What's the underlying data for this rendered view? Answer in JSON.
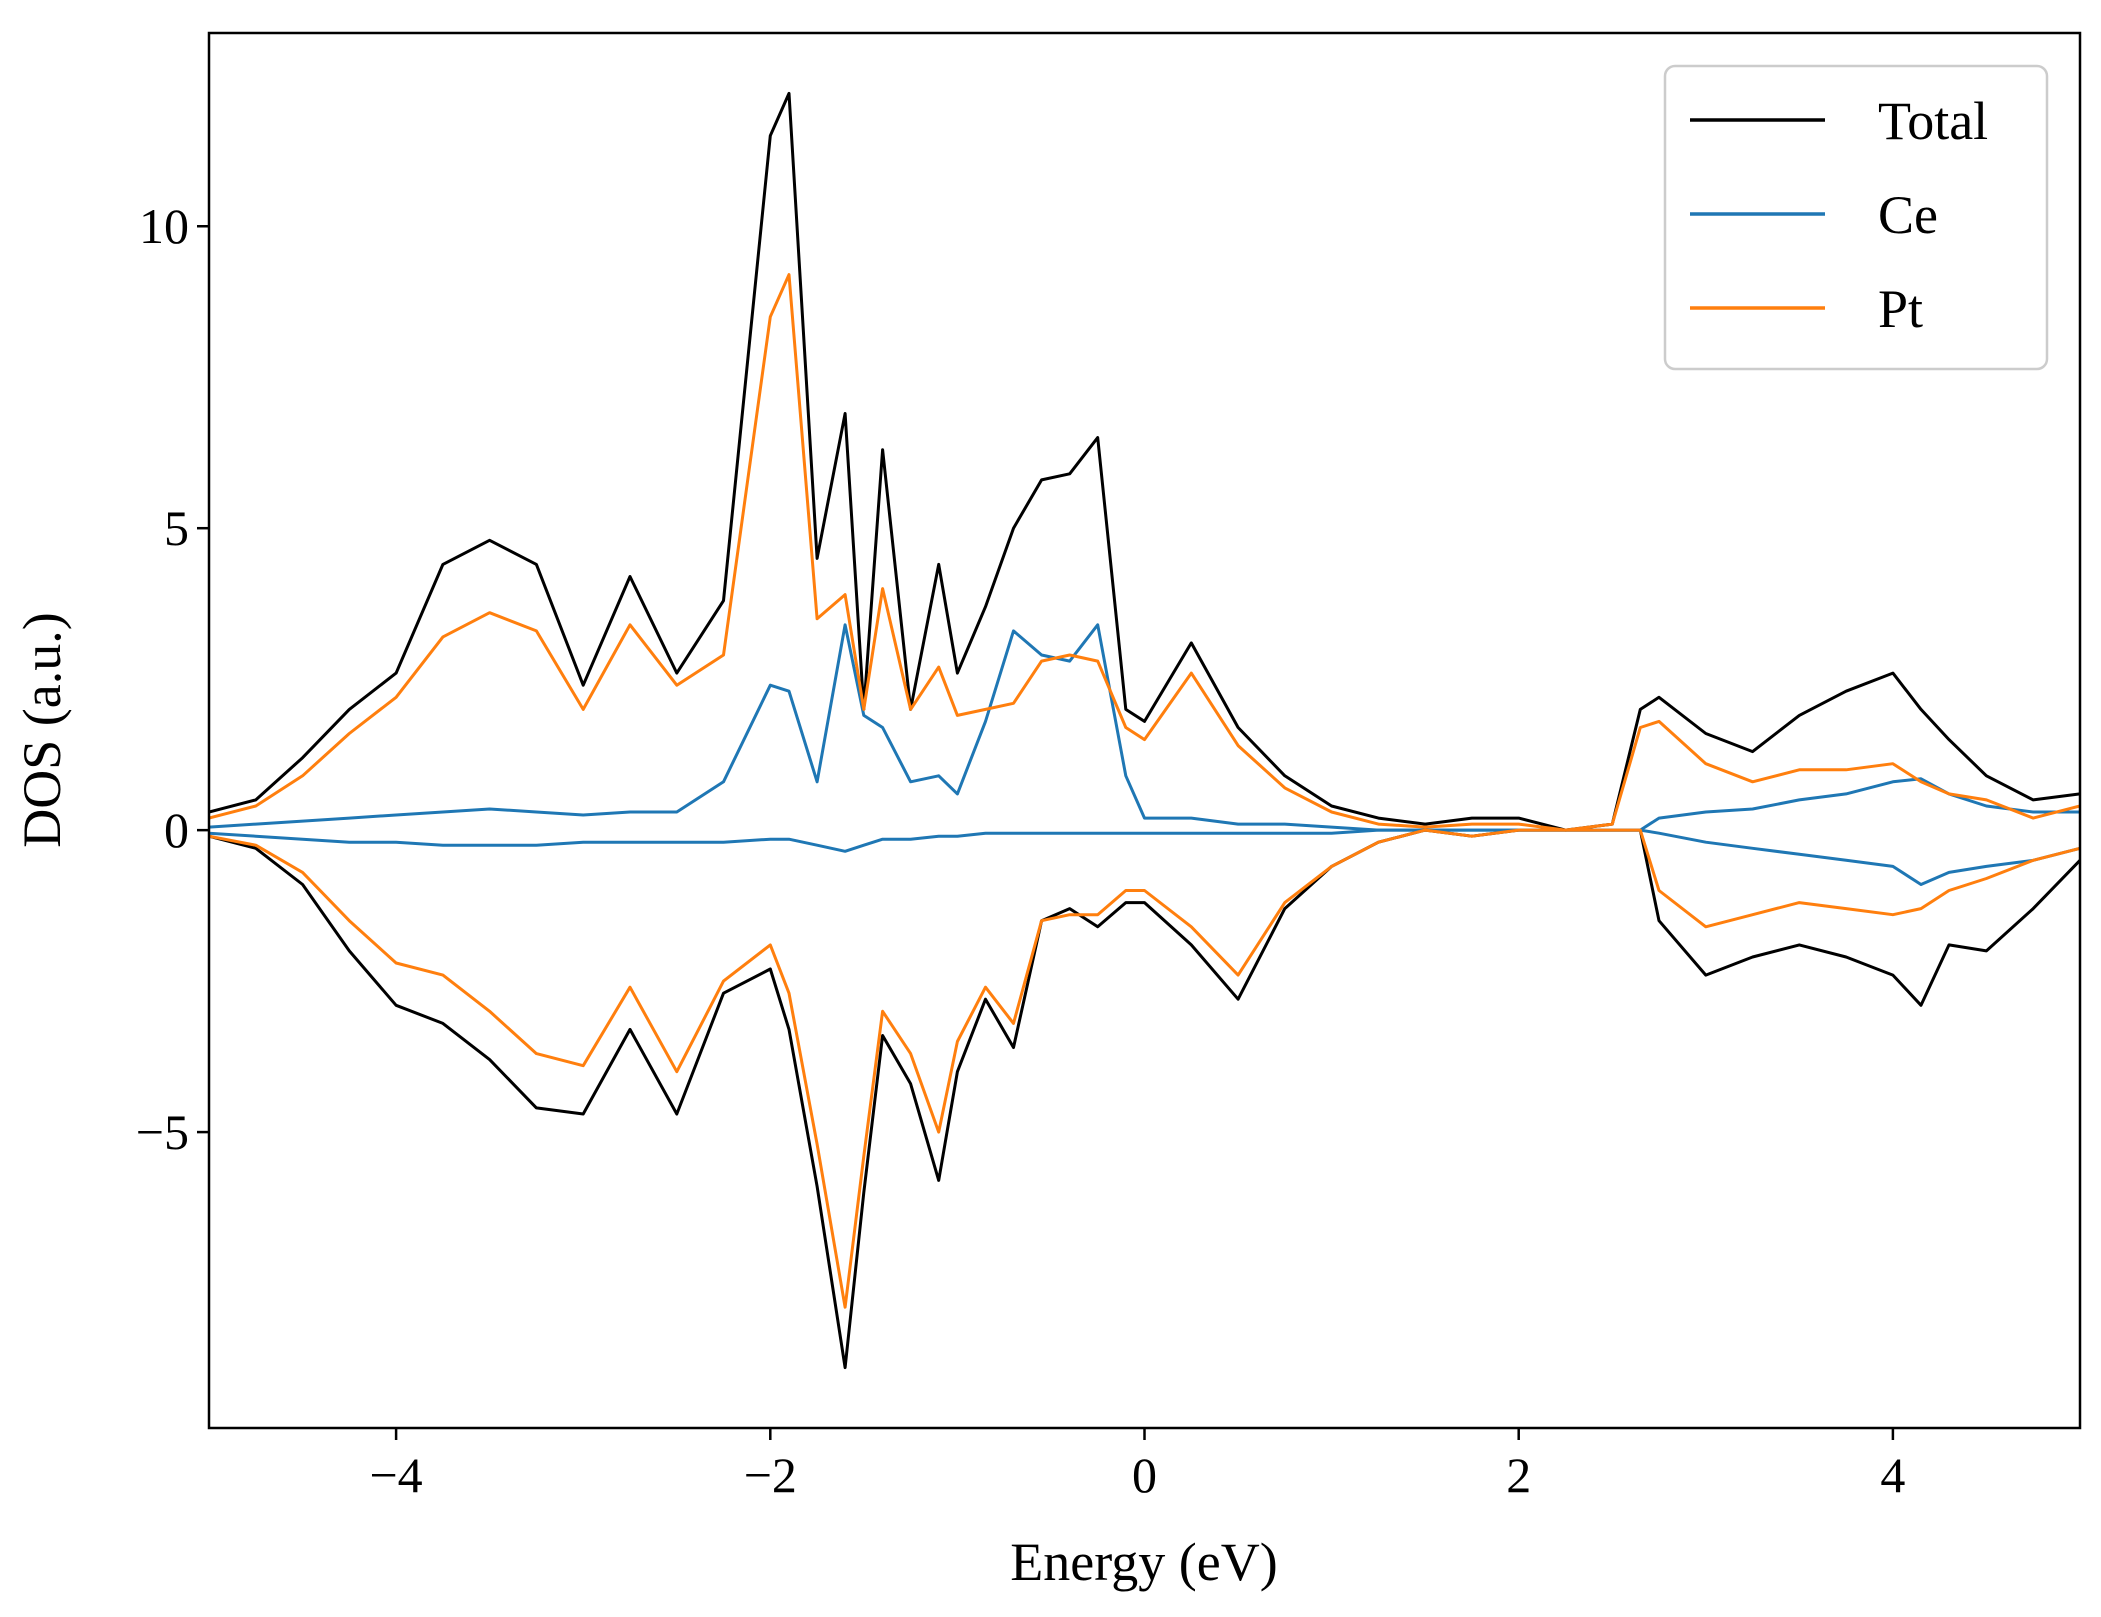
{
  "chart_data": {
    "type": "line",
    "title": "",
    "xlabel": "Energy (eV)",
    "ylabel": "DOS (a.u.)",
    "xlim": [
      -5,
      5
    ],
    "ylim": [
      -9.9,
      13.2
    ],
    "xticks": [
      -4,
      -2,
      0,
      2,
      4
    ],
    "xtick_labels": [
      "−4",
      "−2",
      "0",
      "2",
      "4"
    ],
    "yticks": [
      -5,
      0,
      5,
      10
    ],
    "ytick_labels": [
      "−5",
      "0",
      "5",
      "10"
    ],
    "grid": false,
    "legend_position": "top-right",
    "x": [
      -5.0,
      -4.75,
      -4.5,
      -4.25,
      -4.0,
      -3.75,
      -3.5,
      -3.25,
      -3.0,
      -2.75,
      -2.5,
      -2.25,
      -2.0,
      -1.9,
      -1.75,
      -1.6,
      -1.5,
      -1.4,
      -1.25,
      -1.1,
      -1.0,
      -0.85,
      -0.7,
      -0.55,
      -0.4,
      -0.25,
      -0.1,
      0.0,
      0.25,
      0.5,
      0.75,
      1.0,
      1.25,
      1.5,
      1.75,
      2.0,
      2.25,
      2.5,
      2.65,
      2.75,
      3.0,
      3.25,
      3.5,
      3.75,
      4.0,
      4.15,
      4.3,
      4.5,
      4.75,
      5.0
    ],
    "series": [
      {
        "name": "Total",
        "color": "#000000",
        "up": [
          0.3,
          0.5,
          1.2,
          2.0,
          2.6,
          4.4,
          4.8,
          4.4,
          2.4,
          4.2,
          2.6,
          3.8,
          11.5,
          12.2,
          4.5,
          6.9,
          2.0,
          6.3,
          2.0,
          4.4,
          2.6,
          3.7,
          5.0,
          5.8,
          5.9,
          6.5,
          2.0,
          1.8,
          3.1,
          1.7,
          0.9,
          0.4,
          0.2,
          0.1,
          0.2,
          0.2,
          0.0,
          0.1,
          2.0,
          2.2,
          1.6,
          1.3,
          1.9,
          2.3,
          2.6,
          2.0,
          1.5,
          0.9,
          0.5,
          0.6
        ],
        "down": [
          -0.1,
          -0.3,
          -0.9,
          -2.0,
          -2.9,
          -3.2,
          -3.8,
          -4.6,
          -4.7,
          -3.3,
          -4.7,
          -2.7,
          -2.3,
          -3.3,
          -5.9,
          -8.9,
          -6.0,
          -3.4,
          -4.2,
          -5.8,
          -4.0,
          -2.8,
          -3.6,
          -1.5,
          -1.3,
          -1.6,
          -1.2,
          -1.2,
          -1.9,
          -2.8,
          -1.3,
          -0.6,
          -0.2,
          0.0,
          -0.1,
          0.0,
          0.0,
          0.0,
          0.0,
          -1.5,
          -2.4,
          -2.1,
          -1.9,
          -2.1,
          -2.4,
          -2.9,
          -1.9,
          -2.0,
          -1.3,
          -0.5
        ]
      },
      {
        "name": "Ce",
        "color": "#1f77b4",
        "up": [
          0.05,
          0.1,
          0.15,
          0.2,
          0.25,
          0.3,
          0.35,
          0.3,
          0.25,
          0.3,
          0.3,
          0.8,
          2.4,
          2.3,
          0.8,
          3.4,
          1.9,
          1.7,
          0.8,
          0.9,
          0.6,
          1.8,
          3.3,
          2.9,
          2.8,
          3.4,
          0.9,
          0.2,
          0.2,
          0.1,
          0.1,
          0.05,
          0.0,
          0.0,
          0.0,
          0.0,
          0.0,
          0.0,
          0.0,
          0.2,
          0.3,
          0.35,
          0.5,
          0.6,
          0.8,
          0.85,
          0.6,
          0.4,
          0.3,
          0.3
        ],
        "down": [
          -0.05,
          -0.1,
          -0.15,
          -0.2,
          -0.2,
          -0.25,
          -0.25,
          -0.25,
          -0.2,
          -0.2,
          -0.2,
          -0.2,
          -0.15,
          -0.15,
          -0.25,
          -0.35,
          -0.25,
          -0.15,
          -0.15,
          -0.1,
          -0.1,
          -0.05,
          -0.05,
          -0.05,
          -0.05,
          -0.05,
          -0.05,
          -0.05,
          -0.05,
          -0.05,
          -0.05,
          -0.05,
          0.0,
          0.0,
          0.0,
          0.0,
          0.0,
          0.0,
          0.0,
          -0.05,
          -0.2,
          -0.3,
          -0.4,
          -0.5,
          -0.6,
          -0.9,
          -0.7,
          -0.6,
          -0.5,
          -0.3
        ]
      },
      {
        "name": "Pt",
        "color": "#ff7f0e",
        "up": [
          0.2,
          0.4,
          0.9,
          1.6,
          2.2,
          3.2,
          3.6,
          3.3,
          2.0,
          3.4,
          2.4,
          2.9,
          8.5,
          9.2,
          3.5,
          3.9,
          2.0,
          4.0,
          2.0,
          2.7,
          1.9,
          2.0,
          2.1,
          2.8,
          2.9,
          2.8,
          1.7,
          1.5,
          2.6,
          1.4,
          0.7,
          0.3,
          0.1,
          0.05,
          0.1,
          0.1,
          0.0,
          0.1,
          1.7,
          1.8,
          1.1,
          0.8,
          1.0,
          1.0,
          1.1,
          0.8,
          0.6,
          0.5,
          0.2,
          0.4
        ],
        "down": [
          -0.1,
          -0.25,
          -0.7,
          -1.5,
          -2.2,
          -2.4,
          -3.0,
          -3.7,
          -3.9,
          -2.6,
          -4.0,
          -2.5,
          -1.9,
          -2.7,
          -5.2,
          -7.9,
          -5.4,
          -3.0,
          -3.7,
          -5.0,
          -3.5,
          -2.6,
          -3.2,
          -1.5,
          -1.4,
          -1.4,
          -1.0,
          -1.0,
          -1.6,
          -2.4,
          -1.2,
          -0.6,
          -0.2,
          0.0,
          -0.1,
          0.0,
          0.0,
          0.0,
          0.0,
          -1.0,
          -1.6,
          -1.4,
          -1.2,
          -1.3,
          -1.4,
          -1.3,
          -1.0,
          -0.8,
          -0.5,
          -0.3
        ]
      }
    ]
  }
}
